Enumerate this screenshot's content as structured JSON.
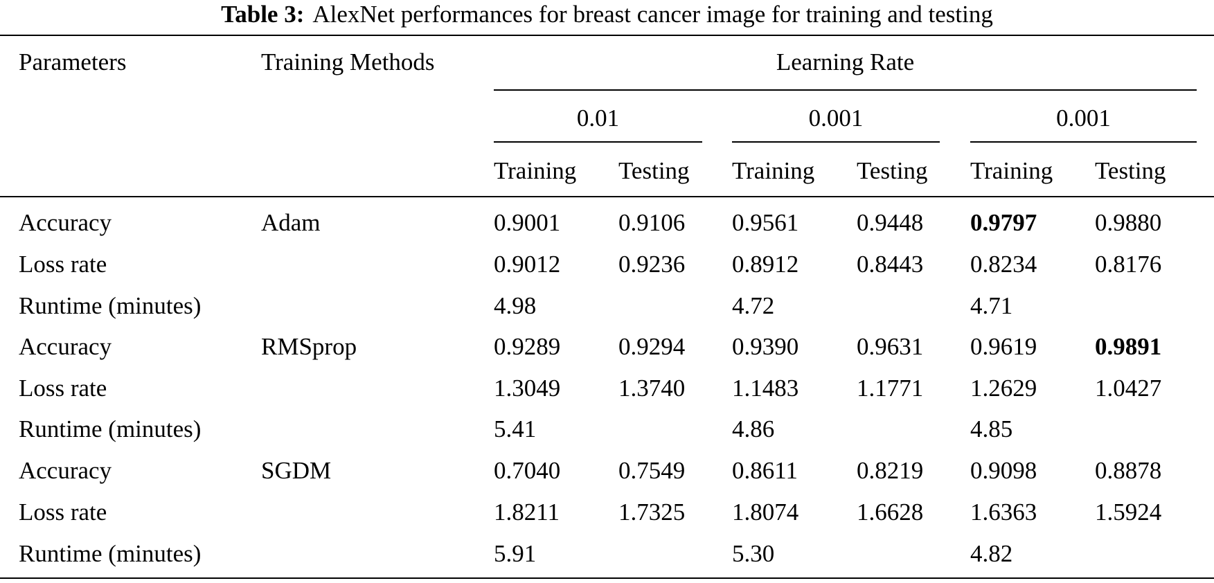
{
  "caption": {
    "label": "Table 3:",
    "text": "AlexNet performances for breast cancer image for training and testing"
  },
  "table": {
    "header": {
      "parameters": "Parameters",
      "training_methods": "Training Methods",
      "learning_rate": "Learning Rate",
      "rate_groups": [
        "0.01",
        "0.001",
        "0.001"
      ],
      "sub_columns": [
        "Training",
        "Testing",
        "Training",
        "Testing",
        "Training",
        "Testing"
      ]
    },
    "rows": [
      {
        "parameter": "Accuracy",
        "method": "Adam",
        "values": [
          "0.9001",
          "0.9106",
          "0.9561",
          "0.9448",
          "0.9797",
          "0.9880"
        ]
      },
      {
        "parameter": "Loss rate",
        "method": "",
        "values": [
          "0.9012",
          "0.9236",
          "0.8912",
          "0.8443",
          "0.8234",
          "0.8176"
        ]
      },
      {
        "parameter": "Runtime (minutes)",
        "method": "",
        "values": [
          "4.98",
          "",
          "4.72",
          "",
          "4.71",
          ""
        ]
      },
      {
        "parameter": "Accuracy",
        "method": "RMSprop",
        "values": [
          "0.9289",
          "0.9294",
          "0.9390",
          "0.9631",
          "0.9619",
          "0.9891"
        ]
      },
      {
        "parameter": "Loss rate",
        "method": "",
        "values": [
          "1.3049",
          "1.3740",
          "1.1483",
          "1.1771",
          "1.2629",
          "1.0427"
        ]
      },
      {
        "parameter": "Runtime (minutes)",
        "method": "",
        "values": [
          "5.41",
          "",
          "4.86",
          "",
          "4.85",
          ""
        ]
      },
      {
        "parameter": "Accuracy",
        "method": "SGDM",
        "values": [
          "0.7040",
          "0.7549",
          "0.8611",
          "0.8219",
          "0.9098",
          "0.8878"
        ]
      },
      {
        "parameter": "Loss rate",
        "method": "",
        "values": [
          "1.8211",
          "1.7325",
          "1.8074",
          "1.6628",
          "1.6363",
          "1.5924"
        ]
      },
      {
        "parameter": "Runtime (minutes)",
        "method": "",
        "values": [
          "5.91",
          "",
          "5.30",
          "",
          "4.82",
          ""
        ]
      }
    ],
    "bold_cells": [
      {
        "row": 0,
        "col": 4
      },
      {
        "row": 3,
        "col": 5
      }
    ]
  }
}
